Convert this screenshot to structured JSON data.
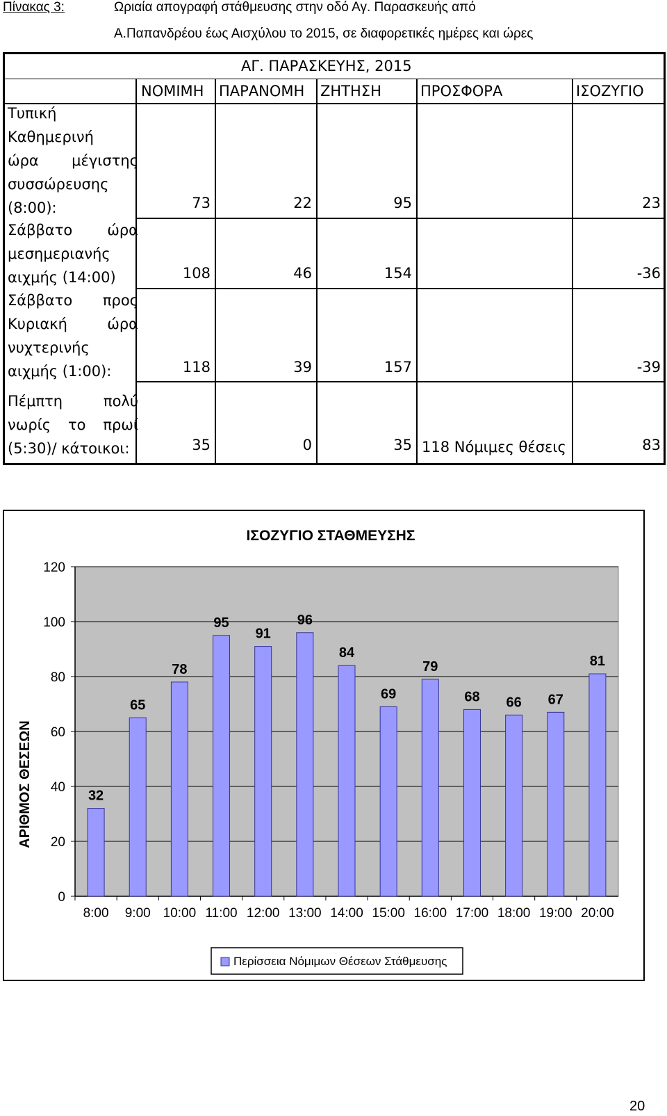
{
  "caption": {
    "label": "Πίνακας 3:",
    "line1": "Ωριαία απογραφή στάθμευσης στην οδό Αγ. Παρασκευής από",
    "line2": "Α.Παπανδρέου έως Αισχύλου το 2015, σε διαφορετικές ημέρες και ώρες"
  },
  "table": {
    "title": "ΑΓ. ΠΑΡΑΣΚΕΥΗΣ, 2015",
    "headers": [
      "ΝΟΜΙΜΗ",
      "ΠΑΡΑΝΟΜΗ",
      "ΖΗΤΗΣΗ",
      "ΠΡΟΣΦΟΡΑ",
      "ΙΣΟΖΥΓΙΟ"
    ],
    "rows": [
      {
        "label_lines": [
          "Τυπική",
          "Καθημερινή",
          "ώρα μέγιστης",
          "συσσώρευσης",
          "(8:00):"
        ],
        "nomimi": "73",
        "paranomi": "22",
        "zitisi": "95",
        "prosfora": "",
        "isozygio": "23"
      },
      {
        "label_lines": [
          "Σάββατο ώρα",
          "μεσημεριανής",
          "αιχμής (14:00)"
        ],
        "nomimi": "108",
        "paranomi": "46",
        "zitisi": "154",
        "prosfora": "",
        "isozygio": "-36"
      },
      {
        "label_lines": [
          "Σάββατο προς",
          "Κυριακή ώρα",
          "νυχτερινής",
          "αιχμής (1:00):"
        ],
        "nomimi": "118",
        "paranomi": "39",
        "zitisi": "157",
        "prosfora": "",
        "isozygio": "-39"
      },
      {
        "label_lines": [
          "Πέμπτη πολύ",
          "νωρίς το πρωί",
          "(5:30)/ κάτοικοι:"
        ],
        "nomimi": "35",
        "paranomi": "0",
        "zitisi": "35",
        "prosfora": "118 Νόμιμες θέσεις",
        "isozygio": "83"
      }
    ]
  },
  "chart_data": {
    "type": "bar",
    "title": "ΙΣΟΖΥΓΙΟ ΣΤΑΘΜΕΥΣΗΣ",
    "xlabel": "",
    "ylabel": "ΑΡΙΘΜΟΣ ΘΕΣΕΩΝ",
    "categories": [
      "8:00",
      "9:00",
      "10:00",
      "11:00",
      "12:00",
      "13:00",
      "14:00",
      "15:00",
      "16:00",
      "17:00",
      "18:00",
      "19:00",
      "20:00"
    ],
    "series": [
      {
        "name": "Περίσσεια Νόμιμων Θέσεων Στάθμευσης",
        "values": [
          32,
          65,
          78,
          95,
          91,
          96,
          84,
          69,
          79,
          68,
          66,
          67,
          81
        ]
      }
    ],
    "ylim": [
      0,
      120
    ],
    "yticks": [
      0,
      20,
      40,
      60,
      80,
      100,
      120
    ],
    "grid": true,
    "legend": "bottom",
    "colors": {
      "bar": "#9999FF",
      "bar_border": "#333399",
      "plot_bg": "#C0C0C0"
    }
  },
  "page_number": "20"
}
